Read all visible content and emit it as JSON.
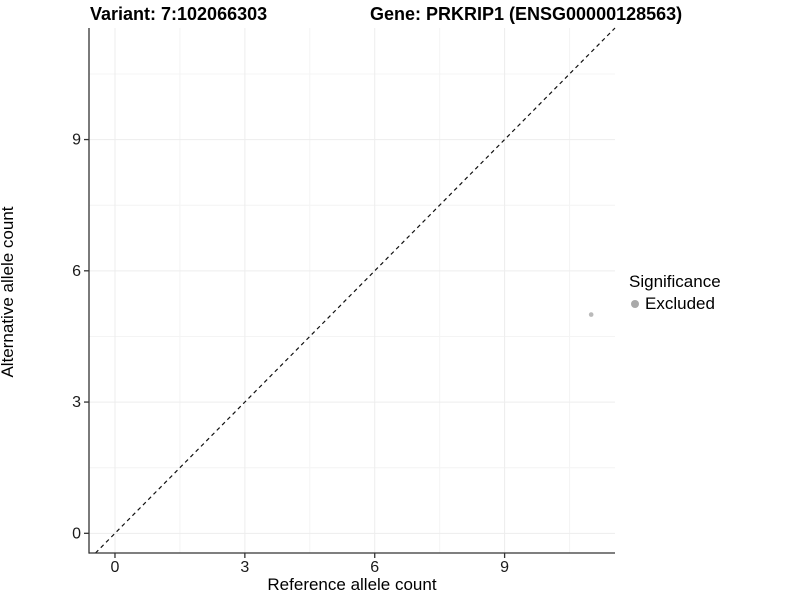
{
  "chart_data": {
    "type": "scatter",
    "title": {
      "variant": "Variant: 7:102066303",
      "gene": "Gene: PRKRIP1 (ENSG00000128563)"
    },
    "xlabel": "Reference allele count",
    "ylabel": "Alternative allele count",
    "xlim": [
      -0.6,
      11.55
    ],
    "ylim": [
      -0.45,
      11.55
    ],
    "x_ticks": [
      0,
      3,
      6,
      9
    ],
    "x_tick_labels": [
      "0",
      "3",
      "6",
      "9"
    ],
    "y_ticks": [
      0,
      3,
      6,
      9
    ],
    "y_tick_labels": [
      "0",
      "3",
      "6",
      "9"
    ],
    "x_minor_ticks": [
      1.5,
      4.5,
      7.5,
      10.5
    ],
    "y_minor_ticks": [
      1.5,
      4.5,
      7.5,
      10.5
    ],
    "grid": true,
    "series": [
      {
        "name": "Excluded",
        "color": "#a9a9a9",
        "points": [
          {
            "x": 11,
            "y": 5
          }
        ]
      }
    ],
    "reference_line": {
      "type": "identity",
      "slope": 1,
      "intercept": 0,
      "style": "dashed",
      "color": "#111111"
    },
    "legend": {
      "title": "Significance",
      "position": "right",
      "items": [
        {
          "label": "Excluded",
          "color": "#a9a9a9"
        }
      ]
    },
    "colors": {
      "background": "#ffffff",
      "grid_major": "#ededed",
      "grid_minor": "#f4f4f4",
      "axis_line": "#333333",
      "tick_mark": "#333333",
      "tick_text": "#1a1a1a"
    }
  }
}
